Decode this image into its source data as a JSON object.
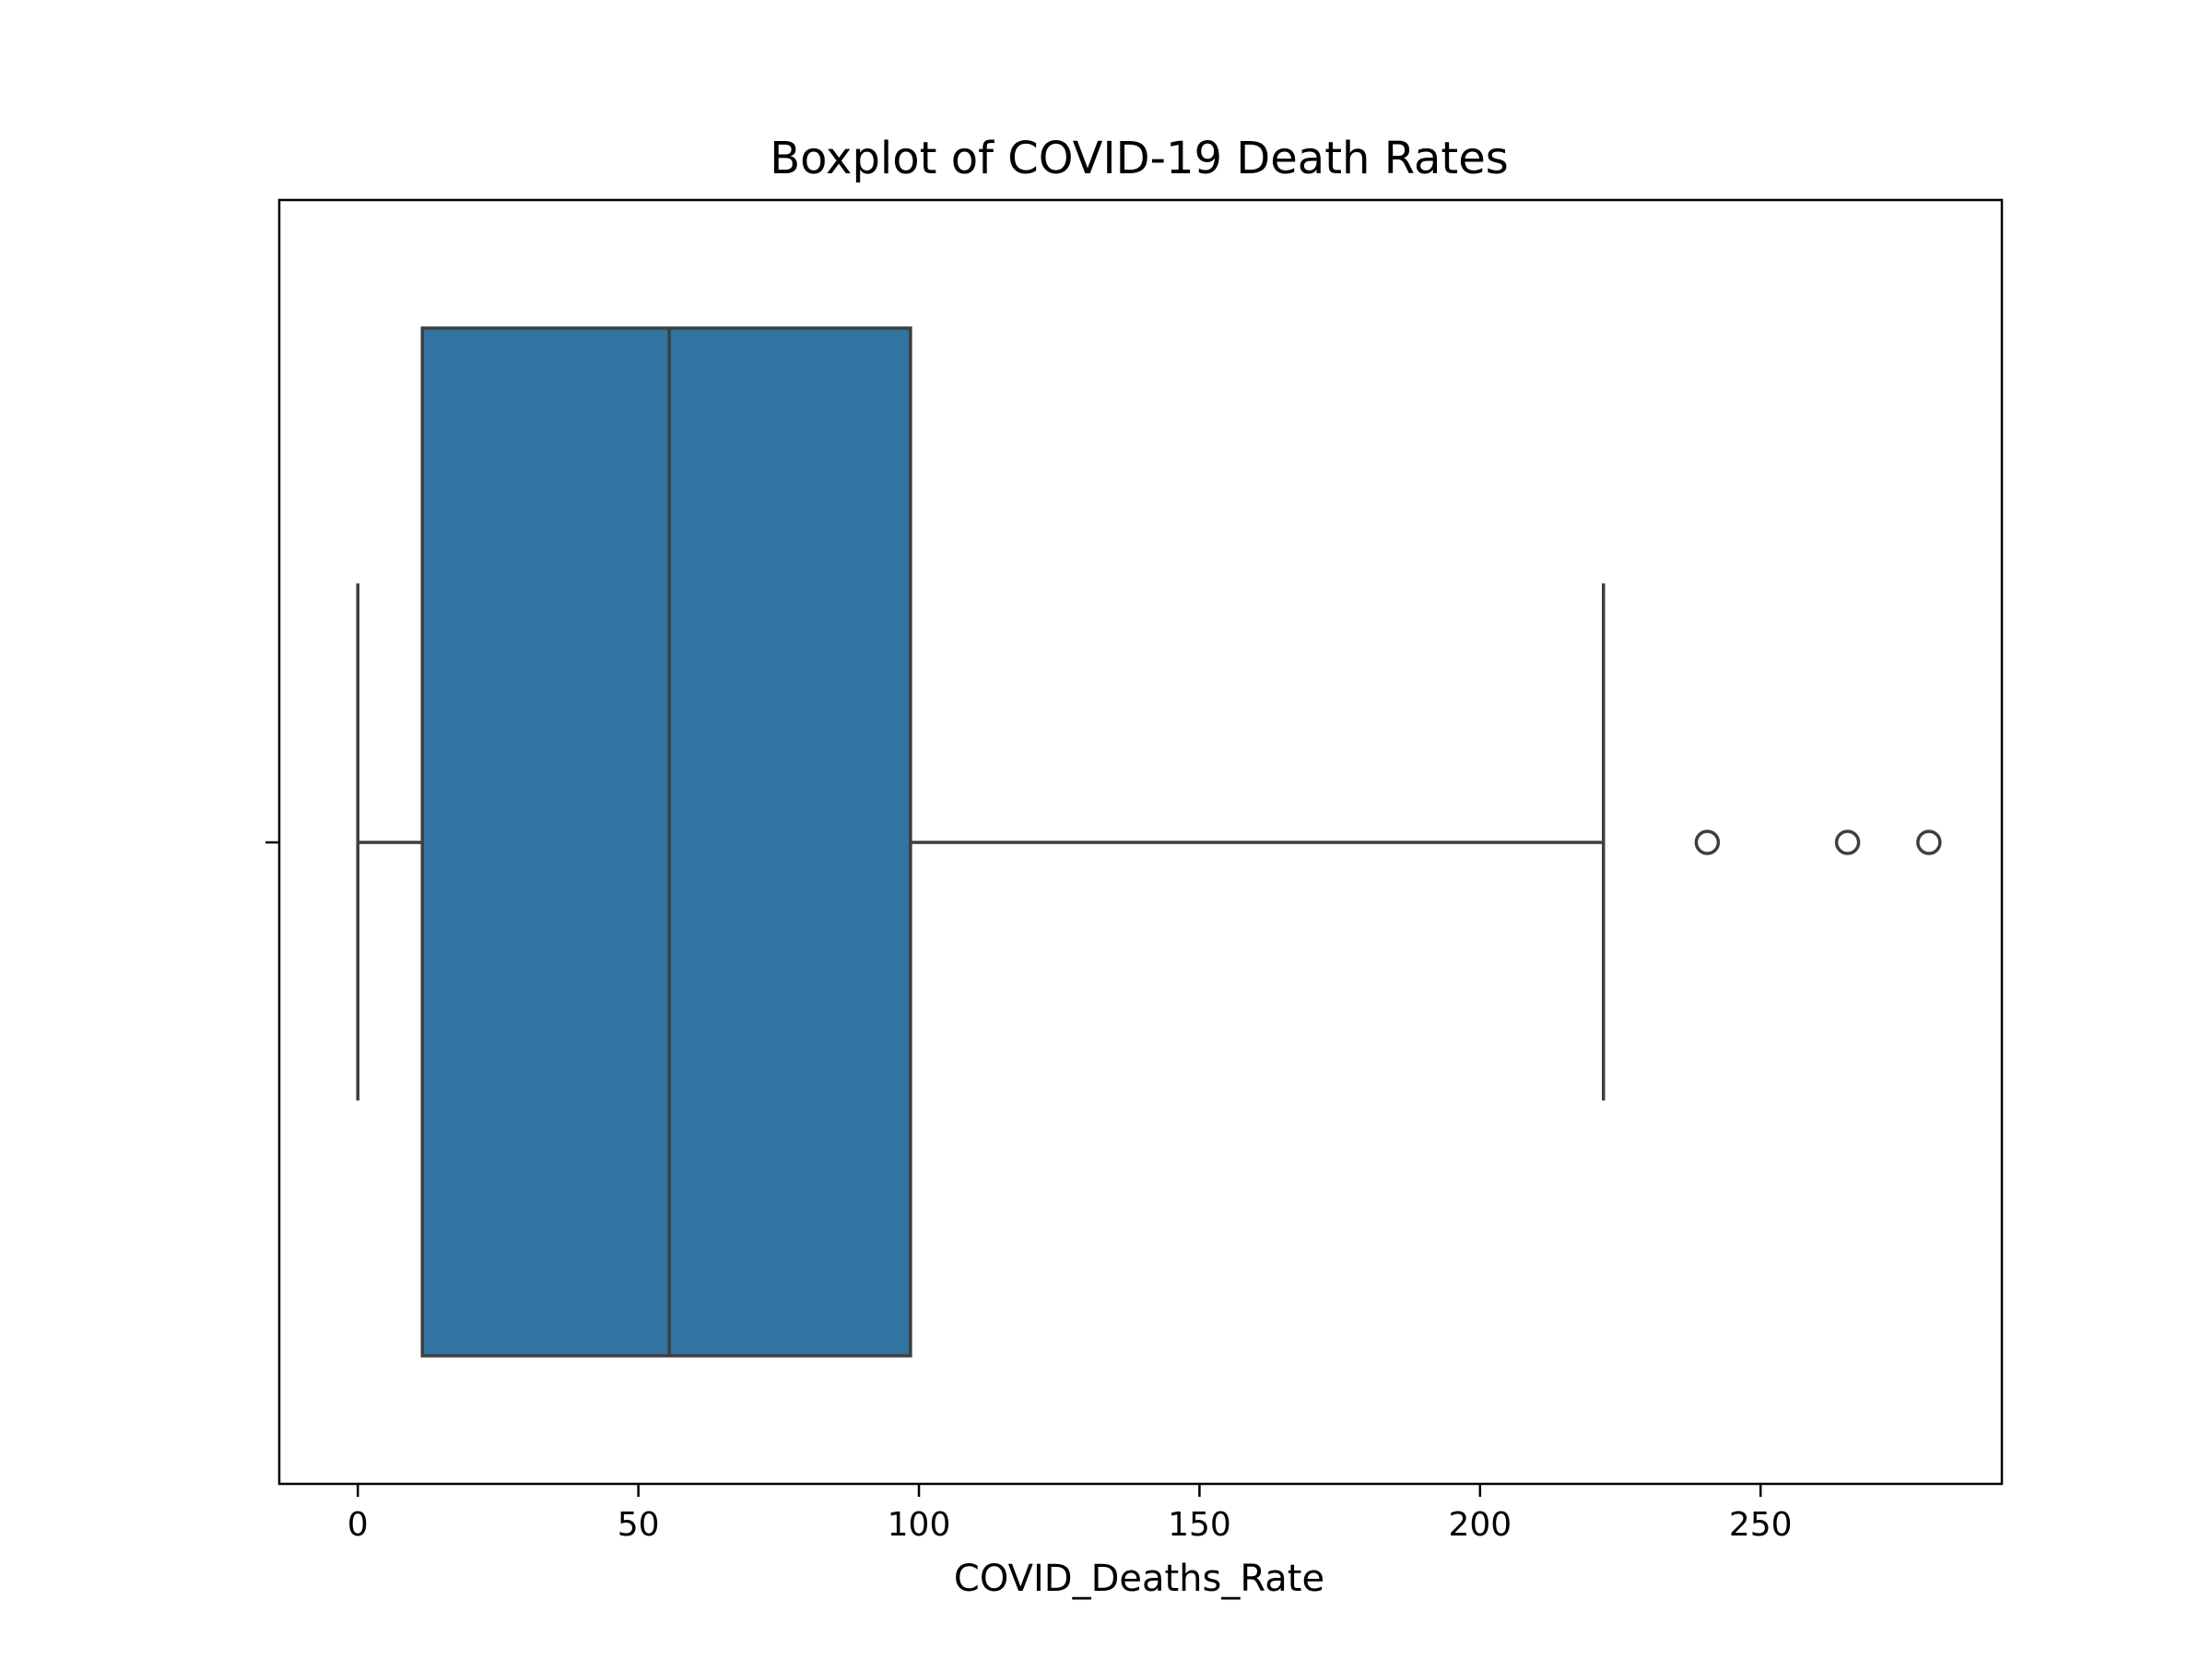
{
  "chart_data": {
    "type": "boxplot",
    "title": "Boxplot of COVID-19 Death Rates",
    "xlabel": "COVID_Deaths_Rate",
    "ylabel": "",
    "xlim": [
      -14,
      293
    ],
    "xticks": [
      0,
      50,
      100,
      150,
      200,
      250
    ],
    "xtick_labels": [
      "0",
      "50",
      "100",
      "150",
      "200",
      "250"
    ],
    "grid": false,
    "orientation": "horizontal",
    "box": {
      "whisker_low": 0,
      "q1": 11.5,
      "median": 55.5,
      "q3": 98.5,
      "whisker_high": 222,
      "outliers": [
        240.5,
        265.5,
        280
      ]
    },
    "colors": {
      "box_fill": "#3274a1",
      "lines": "#3f3f3f",
      "frame": "#000000"
    }
  }
}
